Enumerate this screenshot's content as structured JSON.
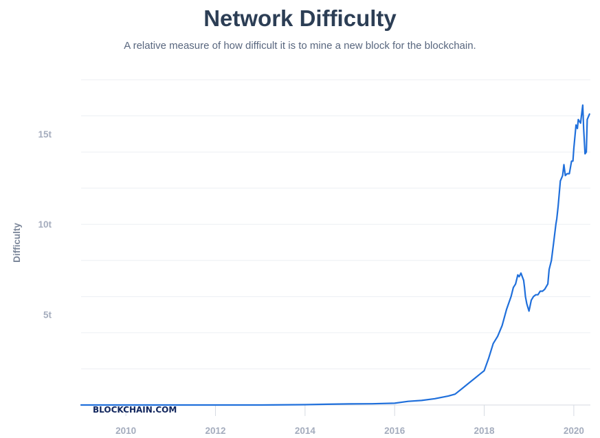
{
  "chart_data": {
    "type": "line",
    "title": "Network Difficulty",
    "subtitle": "A relative measure of how difficult it is to mine a new block for the blockchain.",
    "xlabel": "",
    "ylabel": "Difficulty",
    "watermark": "BLOCKCHAIN.COM",
    "xlim": [
      2009.0,
      2020.37
    ],
    "ylim": [
      0,
      18
    ],
    "x_ticks": [
      2010,
      2012,
      2014,
      2016,
      2018,
      2020
    ],
    "x_tick_labels": [
      "2010",
      "2012",
      "2014",
      "2016",
      "2018",
      "2020"
    ],
    "y_ticks": [
      5,
      10,
      15
    ],
    "y_tick_labels": [
      "5t",
      "10t",
      "15t"
    ],
    "grid_y": [
      2,
      4,
      6,
      8,
      10,
      12,
      14,
      16,
      18
    ],
    "line_color": "#1f6fdb",
    "series": [
      {
        "name": "Difficulty",
        "x": [
          2009.0,
          2013.0,
          2014.0,
          2014.5,
          2015.0,
          2015.5,
          2016.0,
          2016.3,
          2016.6,
          2016.9,
          2017.2,
          2017.35,
          2017.5,
          2017.65,
          2017.8,
          2017.9,
          2018.0,
          2018.1,
          2018.2,
          2018.3,
          2018.4,
          2018.5,
          2018.6,
          2018.65,
          2018.7,
          2018.75,
          2018.78,
          2018.82,
          2018.85,
          2018.88,
          2018.9,
          2018.92,
          2018.95,
          2019.0,
          2019.05,
          2019.1,
          2019.15,
          2019.2,
          2019.25,
          2019.3,
          2019.35,
          2019.42,
          2019.45,
          2019.5,
          2019.55,
          2019.6,
          2019.62,
          2019.65,
          2019.7,
          2019.75,
          2019.78,
          2019.81,
          2019.85,
          2019.88,
          2019.9,
          2019.95,
          2019.98,
          2020.0,
          2020.05,
          2020.08,
          2020.1,
          2020.15,
          2020.18,
          2020.2,
          2020.22,
          2020.25,
          2020.28,
          2020.3,
          2020.35
        ],
        "values": [
          0.0,
          0.0,
          0.02,
          0.04,
          0.06,
          0.07,
          0.1,
          0.2,
          0.25,
          0.35,
          0.5,
          0.6,
          0.9,
          1.2,
          1.5,
          1.7,
          1.9,
          2.6,
          3.4,
          3.8,
          4.4,
          5.3,
          6.0,
          6.5,
          6.7,
          7.2,
          7.1,
          7.3,
          7.1,
          6.9,
          6.5,
          6.0,
          5.6,
          5.2,
          5.8,
          6.0,
          6.1,
          6.1,
          6.3,
          6.3,
          6.4,
          6.7,
          7.5,
          8.0,
          9.0,
          10.0,
          10.3,
          11.0,
          12.4,
          12.7,
          13.3,
          12.7,
          12.8,
          12.8,
          12.8,
          13.5,
          13.5,
          14.2,
          15.5,
          15.3,
          15.8,
          15.6,
          16.2,
          16.6,
          15.3,
          13.9,
          14.0,
          15.8,
          16.1
        ]
      }
    ]
  }
}
